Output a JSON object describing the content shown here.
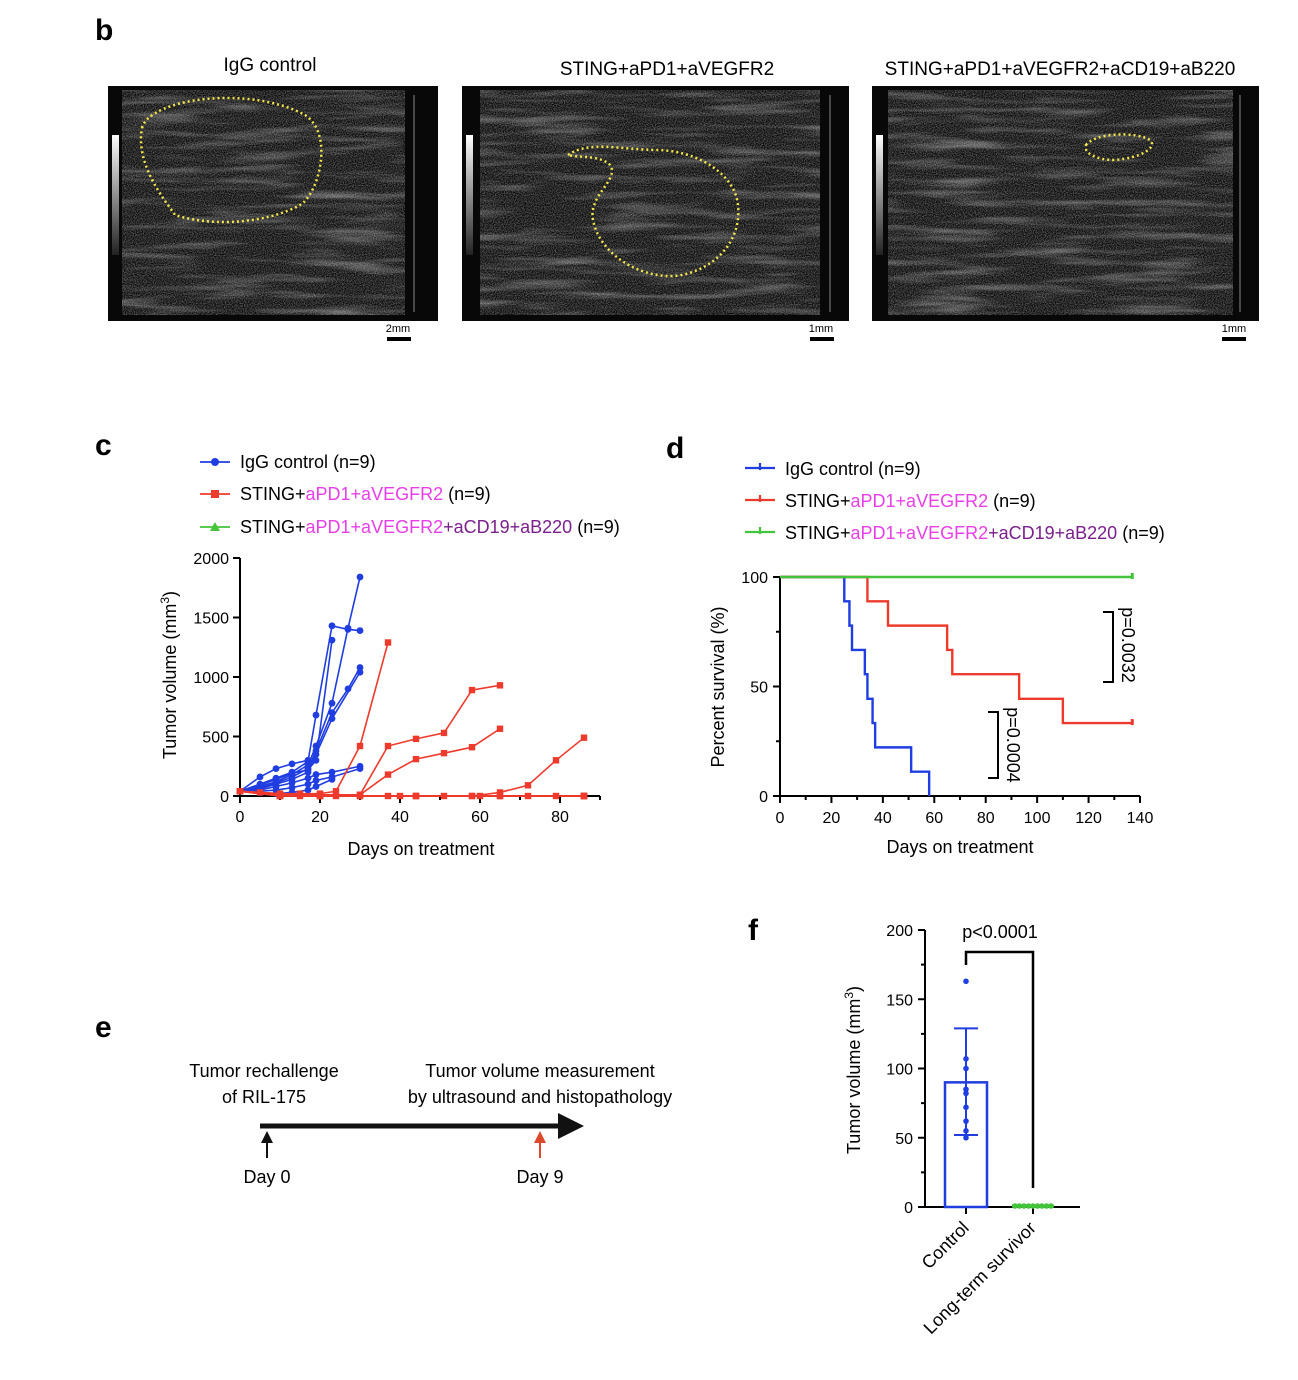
{
  "colors": {
    "control": "#1f3de0",
    "sting": "#ee3a2c",
    "combo": "#43c43a",
    "magenta": "#e83ee8",
    "purple": "#7a1f8c",
    "dotted": "#f2e64a",
    "arrow_red": "#e0482c"
  },
  "panel_b": {
    "label": "b",
    "images": [
      {
        "title": "IgG control",
        "scale": "2mm"
      },
      {
        "title": "STING+aPD1+aVEGFR2",
        "scale": "1mm"
      },
      {
        "title": "STING+aPD1+aVEGFR2+aCD19+aB220",
        "scale": "1mm"
      }
    ]
  },
  "panel_c": {
    "label": "c",
    "legend": [
      {
        "prefix": "IgG control (n=9)",
        "mid1": "",
        "mid2": "",
        "suffix": ""
      },
      {
        "prefix": "STING+",
        "mid1": "aPD1+aVEGFR2",
        "mid2": "",
        "suffix": " (n=9)"
      },
      {
        "prefix": "STING+",
        "mid1": "aPD1+aVEGFR2",
        "mid2": "+aCD19+aB220",
        "suffix": " (n=9)"
      }
    ],
    "ylabel": "Tumor volume (mm",
    "ylabel_sup": "3",
    "ylabel_end": ")",
    "xlabel": "Days on treatment",
    "xticks": [
      "0",
      "20",
      "40",
      "60",
      "80"
    ],
    "yticks": [
      "0",
      "500",
      "1000",
      "1500",
      "2000"
    ]
  },
  "panel_d": {
    "label": "d",
    "legend": [
      {
        "prefix": "IgG control (n=9)",
        "mid1": "",
        "mid2": "",
        "suffix": ""
      },
      {
        "prefix": "STING+",
        "mid1": "aPD1+aVEGFR2",
        "mid2": "",
        "suffix": " (n=9)"
      },
      {
        "prefix": "STING+",
        "mid1": "aPD1+aVEGFR2",
        "mid2": "+aCD19+aB220",
        "suffix": " (n=9)"
      }
    ],
    "ylabel": "Percent survival (%)",
    "xlabel": "Days on treatment",
    "xticks": [
      "0",
      "20",
      "40",
      "60",
      "80",
      "100",
      "120",
      "140"
    ],
    "yticks": [
      "0",
      "50",
      "100"
    ],
    "p1": "p=0.0032",
    "p2": "p=0.0004"
  },
  "panel_e": {
    "label": "e",
    "left_text": [
      "Tumor rechallenge",
      "of RIL-175"
    ],
    "right_text": [
      "Tumor volume measurement",
      "by ultrasound and histopathology"
    ],
    "day0": "Day 0",
    "day9": "Day 9"
  },
  "panel_f": {
    "label": "f",
    "ylabel": "Tumor volume (mm",
    "ylabel_sup": "3",
    "ylabel_end": ")",
    "yticks": [
      "0",
      "50",
      "100",
      "150",
      "200"
    ],
    "categories": [
      "Control",
      "Long-term survivor"
    ],
    "pvalue": "p<0.0001"
  },
  "chart_data": [
    {
      "type": "line",
      "panel": "c",
      "xlabel": "Days on treatment",
      "ylabel": "Tumor volume (mm3)",
      "xlim": [
        0,
        90
      ],
      "ylim": [
        0,
        2000
      ],
      "series": [
        {
          "name": "IgG control (n=9)",
          "group": "control",
          "lines": [
            [
              [
                0,
                40
              ],
              [
                5,
                100
              ],
              [
                9,
                150
              ],
              [
                13,
                200
              ],
              [
                17,
                290
              ],
              [
                19,
                680
              ],
              [
                23,
                1430
              ],
              [
                27,
                1400
              ],
              [
                30,
                1390
              ]
            ],
            [
              [
                0,
                40
              ],
              [
                5,
                80
              ],
              [
                9,
                120
              ],
              [
                13,
                180
              ],
              [
                17,
                260
              ],
              [
                19,
                420
              ],
              [
                23,
                780
              ],
              [
                27,
                1410
              ],
              [
                30,
                1840
              ]
            ],
            [
              [
                0,
                40
              ],
              [
                5,
                70
              ],
              [
                9,
                110
              ],
              [
                13,
                160
              ],
              [
                17,
                230
              ],
              [
                19,
                380
              ],
              [
                23,
                700
              ],
              [
                27,
                900
              ],
              [
                30,
                1080
              ]
            ],
            [
              [
                0,
                40
              ],
              [
                5,
                60
              ],
              [
                9,
                100
              ],
              [
                13,
                140
              ],
              [
                17,
                200
              ],
              [
                19,
                350
              ],
              [
                23,
                650
              ],
              [
                30,
                1040
              ]
            ],
            [
              [
                0,
                40
              ],
              [
                5,
                90
              ],
              [
                9,
                140
              ],
              [
                13,
                190
              ],
              [
                17,
                220
              ],
              [
                19,
                300
              ],
              [
                23,
                1310
              ]
            ],
            [
              [
                0,
                40
              ],
              [
                5,
                160
              ],
              [
                9,
                230
              ],
              [
                13,
                270
              ],
              [
                17,
                300
              ]
            ],
            [
              [
                0,
                40
              ],
              [
                5,
                50
              ],
              [
                9,
                80
              ],
              [
                13,
                110
              ],
              [
                17,
                150
              ],
              [
                19,
                180
              ],
              [
                23,
                200
              ],
              [
                30,
                250
              ]
            ],
            [
              [
                0,
                40
              ],
              [
                5,
                40
              ],
              [
                9,
                50
              ],
              [
                13,
                70
              ],
              [
                17,
                100
              ],
              [
                19,
                130
              ],
              [
                23,
                160
              ],
              [
                30,
                230
              ]
            ],
            [
              [
                0,
                40
              ],
              [
                5,
                30
              ],
              [
                9,
                20
              ],
              [
                13,
                30
              ],
              [
                17,
                50
              ],
              [
                19,
                80
              ],
              [
                23,
                140
              ]
            ]
          ]
        },
        {
          "name": "STING+aPD1+aVEGFR2 (n=9)",
          "group": "sting",
          "lines": [
            [
              [
                0,
                40
              ],
              [
                5,
                30
              ],
              [
                10,
                20
              ],
              [
                15,
                20
              ],
              [
                20,
                20
              ],
              [
                24,
                40
              ],
              [
                30,
                420
              ],
              [
                37,
                1290
              ]
            ],
            [
              [
                0,
                40
              ],
              [
                10,
                10
              ],
              [
                20,
                10
              ],
              [
                30,
                10
              ],
              [
                37,
                420
              ],
              [
                44,
                480
              ],
              [
                51,
                530
              ],
              [
                58,
                890
              ],
              [
                65,
                930
              ]
            ],
            [
              [
                0,
                40
              ],
              [
                10,
                10
              ],
              [
                20,
                10
              ],
              [
                30,
                10
              ],
              [
                37,
                180
              ],
              [
                44,
                310
              ],
              [
                51,
                360
              ],
              [
                58,
                410
              ],
              [
                65,
                565
              ]
            ],
            [
              [
                0,
                40
              ],
              [
                10,
                5
              ],
              [
                20,
                0
              ],
              [
                30,
                0
              ],
              [
                44,
                0
              ],
              [
                58,
                0
              ],
              [
                65,
                30
              ],
              [
                72,
                90
              ],
              [
                79,
                300
              ],
              [
                86,
                490
              ]
            ],
            [
              [
                0,
                40
              ],
              [
                10,
                0
              ],
              [
                20,
                0
              ],
              [
                40,
                0
              ],
              [
                60,
                0
              ],
              [
                86,
                0
              ]
            ],
            [
              [
                0,
                40
              ],
              [
                10,
                0
              ],
              [
                24,
                0
              ],
              [
                44,
                0
              ],
              [
                65,
                0
              ],
              [
                86,
                0
              ]
            ],
            [
              [
                0,
                40
              ],
              [
                15,
                0
              ],
              [
                30,
                0
              ],
              [
                51,
                0
              ],
              [
                72,
                0
              ],
              [
                86,
                0
              ]
            ],
            [
              [
                0,
                40
              ],
              [
                10,
                0
              ],
              [
                37,
                0
              ],
              [
                58,
                0
              ],
              [
                79,
                0
              ],
              [
                86,
                0
              ]
            ],
            [
              [
                0,
                40
              ],
              [
                20,
                0
              ],
              [
                44,
                0
              ],
              [
                65,
                0
              ],
              [
                86,
                0
              ]
            ]
          ]
        },
        {
          "name": "STING+aPD1+aVEGFR2+aCD19+aB220 (n=9)",
          "group": "combo",
          "lines": []
        }
      ]
    },
    {
      "type": "line",
      "panel": "d",
      "subtype": "kaplan-meier",
      "xlabel": "Days on treatment",
      "ylabel": "Percent survival (%)",
      "xlim": [
        0,
        140
      ],
      "ylim": [
        0,
        100
      ],
      "series": [
        {
          "name": "IgG control (n=9)",
          "group": "control",
          "steps": [
            [
              0,
              100
            ],
            [
              25,
              100
            ],
            [
              25,
              88.9
            ],
            [
              27,
              88.9
            ],
            [
              27,
              77.8
            ],
            [
              28,
              77.8
            ],
            [
              28,
              66.7
            ],
            [
              33,
              66.7
            ],
            [
              33,
              55.6
            ],
            [
              34,
              55.6
            ],
            [
              34,
              44.4
            ],
            [
              36,
              44.4
            ],
            [
              36,
              33.3
            ],
            [
              37,
              33.3
            ],
            [
              37,
              22.2
            ],
            [
              51,
              22.2
            ],
            [
              51,
              11.1
            ],
            [
              58,
              11.1
            ],
            [
              58,
              0
            ]
          ]
        },
        {
          "name": "STING+aPD1+aVEGFR2 (n=9)",
          "group": "sting",
          "steps": [
            [
              0,
              100
            ],
            [
              34,
              100
            ],
            [
              34,
              88.9
            ],
            [
              42,
              88.9
            ],
            [
              42,
              77.8
            ],
            [
              65,
              77.8
            ],
            [
              65,
              66.7
            ],
            [
              67,
              66.7
            ],
            [
              67,
              55.6
            ],
            [
              93,
              55.6
            ],
            [
              93,
              44.4
            ],
            [
              110,
              44.4
            ],
            [
              110,
              33.3
            ],
            [
              137,
              33.3
            ]
          ],
          "censor": [
            [
              137,
              33.3
            ]
          ]
        },
        {
          "name": "STING+aPD1+aVEGFR2+aCD19+aB220 (n=9)",
          "group": "combo",
          "steps": [
            [
              0,
              100
            ],
            [
              137,
              100
            ]
          ],
          "censor": [
            [
              137,
              100
            ]
          ]
        }
      ]
    },
    {
      "type": "bar",
      "panel": "f",
      "ylabel": "Tumor volume (mm3)",
      "ylim": [
        0,
        200
      ],
      "categories": [
        "Control",
        "Long-term survivor"
      ],
      "values": [
        90,
        0
      ],
      "error": [
        [
          52,
          129
        ],
        [
          0,
          0
        ]
      ],
      "points": [
        [
          163,
          107,
          100,
          85,
          82,
          72,
          62,
          55,
          50
        ],
        [
          0,
          0,
          0,
          0,
          0,
          0,
          0,
          0,
          0
        ]
      ]
    }
  ]
}
